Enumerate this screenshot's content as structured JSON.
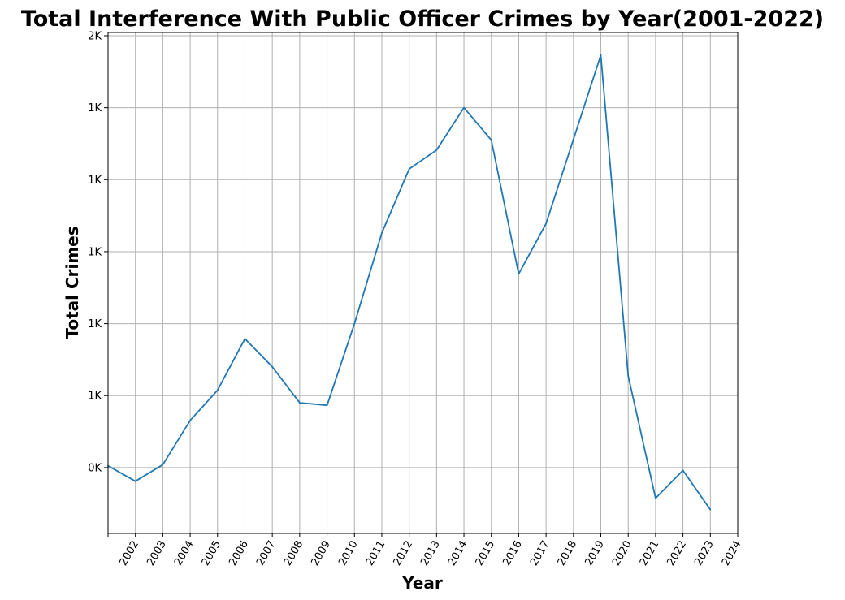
{
  "chart_data": {
    "type": "line",
    "title": "Total Interference With Public Officer Crimes by Year(2001-2022)",
    "xlabel": "Year",
    "ylabel": "Total Crimes",
    "x_ticks": [
      "2002",
      "2003",
      "2004",
      "2005",
      "2006",
      "2007",
      "2008",
      "2009",
      "2010",
      "2011",
      "2012",
      "2013",
      "2014",
      "2015",
      "2016",
      "2017",
      "2018",
      "2019",
      "2020",
      "2021",
      "2022",
      "2023",
      "2024"
    ],
    "y_ticks": [
      {
        "value": 400,
        "label": "0K"
      },
      {
        "value": 600,
        "label": "1K"
      },
      {
        "value": 800,
        "label": "1K"
      },
      {
        "value": 1000,
        "label": "1K"
      },
      {
        "value": 1200,
        "label": "1K"
      },
      {
        "value": 1400,
        "label": "1K"
      },
      {
        "value": 1600,
        "label": "2K"
      }
    ],
    "xlim": [
      2001,
      2024
    ],
    "ylim": [
      217,
      1609
    ],
    "grid": true,
    "color": "#1f77b4",
    "x": [
      2001,
      2002,
      2003,
      2004,
      2005,
      2006,
      2007,
      2008,
      2009,
      2010,
      2011,
      2012,
      2013,
      2014,
      2015,
      2016,
      2017,
      2018,
      2019,
      2020,
      2021,
      2022,
      2023
    ],
    "values": [
      405,
      362,
      408,
      531,
      615,
      758,
      680,
      580,
      573,
      800,
      1052,
      1230,
      1282,
      1400,
      1310,
      938,
      1078,
      1312,
      1546,
      655,
      315,
      392,
      283
    ]
  }
}
